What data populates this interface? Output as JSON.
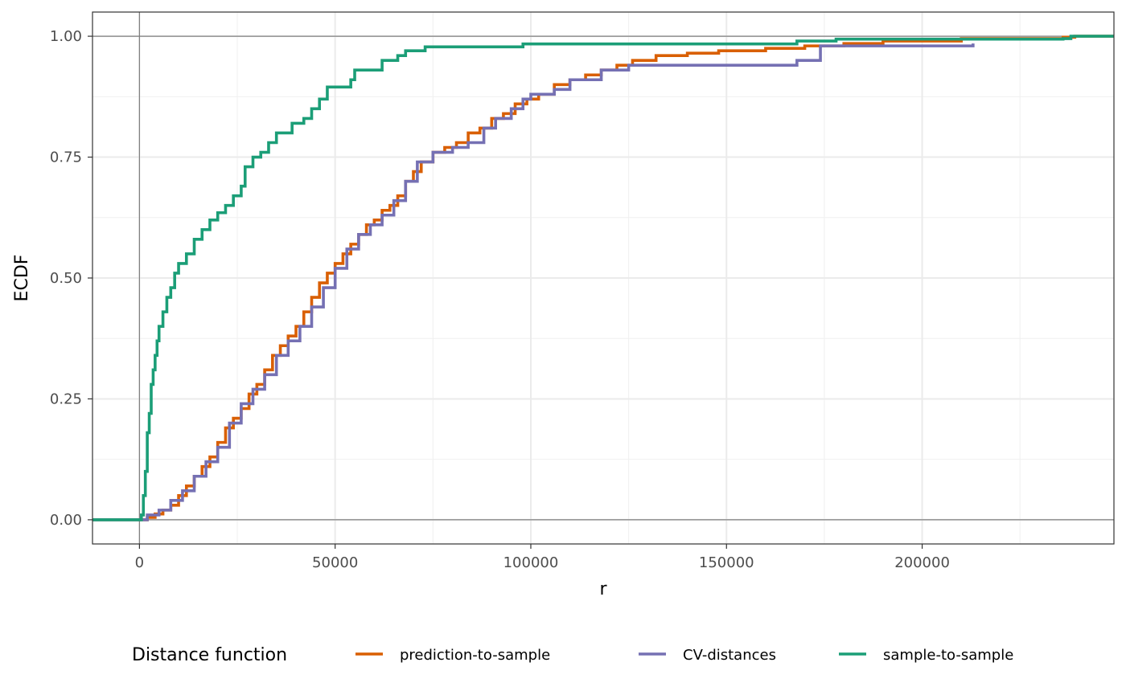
{
  "chart_data": {
    "type": "line",
    "step": true,
    "xlabel": "r",
    "ylabel": "ECDF",
    "xlim": [
      -12000,
      249000
    ],
    "ylim": [
      -0.05,
      1.05
    ],
    "x_ticks": [
      0,
      50000,
      100000,
      150000,
      200000
    ],
    "x_tick_labels": [
      "0",
      "50000",
      "100000",
      "150000",
      "200000"
    ],
    "y_ticks": [
      0,
      0.25,
      0.5,
      0.75,
      1
    ],
    "y_tick_labels": [
      "0.00",
      "0.25",
      "0.50",
      "0.75",
      "1.00"
    ],
    "grid": true,
    "reference_lines": {
      "x": [
        0
      ],
      "y": [
        0,
        1
      ]
    },
    "legend": {
      "title": "Distance function",
      "position": "bottom",
      "items": [
        {
          "label": "prediction-to-sample",
          "color": "#D95F02"
        },
        {
          "label": "CV-distances",
          "color": "#7570B3"
        },
        {
          "label": "sample-to-sample",
          "color": "#1B9E77"
        }
      ]
    },
    "series": [
      {
        "name": "prediction-to-sample",
        "color": "#D95F02",
        "points": [
          [
            -12000,
            0
          ],
          [
            0,
            0
          ],
          [
            2000,
            0.005
          ],
          [
            4000,
            0.012
          ],
          [
            6000,
            0.02
          ],
          [
            8000,
            0.03
          ],
          [
            10000,
            0.05
          ],
          [
            12000,
            0.07
          ],
          [
            14000,
            0.09
          ],
          [
            16000,
            0.11
          ],
          [
            18000,
            0.13
          ],
          [
            20000,
            0.16
          ],
          [
            22000,
            0.19
          ],
          [
            24000,
            0.21
          ],
          [
            26000,
            0.23
          ],
          [
            28000,
            0.26
          ],
          [
            30000,
            0.28
          ],
          [
            32000,
            0.31
          ],
          [
            34000,
            0.34
          ],
          [
            36000,
            0.36
          ],
          [
            38000,
            0.38
          ],
          [
            40000,
            0.4
          ],
          [
            42000,
            0.43
          ],
          [
            44000,
            0.46
          ],
          [
            46000,
            0.49
          ],
          [
            48000,
            0.51
          ],
          [
            50000,
            0.53
          ],
          [
            52000,
            0.55
          ],
          [
            54000,
            0.57
          ],
          [
            56000,
            0.59
          ],
          [
            58000,
            0.61
          ],
          [
            60000,
            0.62
          ],
          [
            62000,
            0.64
          ],
          [
            64000,
            0.65
          ],
          [
            66000,
            0.67
          ],
          [
            68000,
            0.7
          ],
          [
            70000,
            0.72
          ],
          [
            72000,
            0.74
          ],
          [
            75000,
            0.76
          ],
          [
            78000,
            0.77
          ],
          [
            81000,
            0.78
          ],
          [
            84000,
            0.8
          ],
          [
            87000,
            0.81
          ],
          [
            90000,
            0.83
          ],
          [
            93000,
            0.84
          ],
          [
            96000,
            0.86
          ],
          [
            99000,
            0.87
          ],
          [
            102000,
            0.88
          ],
          [
            106000,
            0.9
          ],
          [
            110000,
            0.91
          ],
          [
            114000,
            0.92
          ],
          [
            118000,
            0.93
          ],
          [
            122000,
            0.94
          ],
          [
            126000,
            0.95
          ],
          [
            132000,
            0.96
          ],
          [
            140000,
            0.965
          ],
          [
            148000,
            0.97
          ],
          [
            160000,
            0.975
          ],
          [
            170000,
            0.98
          ],
          [
            180000,
            0.985
          ],
          [
            190000,
            0.99
          ],
          [
            210000,
            0.995
          ],
          [
            236000,
            0.998
          ],
          [
            239000,
            1.0
          ],
          [
            249000,
            1.0
          ]
        ]
      },
      {
        "name": "CV-distances",
        "color": "#7570B3",
        "points": [
          [
            -12000,
            0
          ],
          [
            1000,
            0
          ],
          [
            2000,
            0.01
          ],
          [
            5000,
            0.02
          ],
          [
            8000,
            0.04
          ],
          [
            11000,
            0.06
          ],
          [
            14000,
            0.09
          ],
          [
            17000,
            0.12
          ],
          [
            20000,
            0.15
          ],
          [
            23000,
            0.2
          ],
          [
            26000,
            0.24
          ],
          [
            29000,
            0.27
          ],
          [
            32000,
            0.3
          ],
          [
            35000,
            0.34
          ],
          [
            38000,
            0.37
          ],
          [
            41000,
            0.4
          ],
          [
            44000,
            0.44
          ],
          [
            47000,
            0.48
          ],
          [
            50000,
            0.52
          ],
          [
            53000,
            0.56
          ],
          [
            56000,
            0.59
          ],
          [
            59000,
            0.61
          ],
          [
            62000,
            0.63
          ],
          [
            65000,
            0.66
          ],
          [
            68000,
            0.7
          ],
          [
            71000,
            0.74
          ],
          [
            75000,
            0.76
          ],
          [
            80000,
            0.77
          ],
          [
            84000,
            0.78
          ],
          [
            88000,
            0.81
          ],
          [
            91000,
            0.83
          ],
          [
            95000,
            0.85
          ],
          [
            98000,
            0.87
          ],
          [
            100000,
            0.88
          ],
          [
            106000,
            0.89
          ],
          [
            110000,
            0.91
          ],
          [
            118000,
            0.93
          ],
          [
            125000,
            0.94
          ],
          [
            168000,
            0.95
          ],
          [
            174000,
            0.98
          ],
          [
            213000,
            0.985
          ]
        ]
      },
      {
        "name": "sample-to-sample",
        "color": "#1B9E77",
        "points": [
          [
            -12000,
            0
          ],
          [
            0,
            0
          ],
          [
            500,
            0.01
          ],
          [
            1000,
            0.05
          ],
          [
            1500,
            0.1
          ],
          [
            2000,
            0.18
          ],
          [
            2500,
            0.22
          ],
          [
            3000,
            0.28
          ],
          [
            3500,
            0.31
          ],
          [
            4000,
            0.34
          ],
          [
            4500,
            0.37
          ],
          [
            5000,
            0.4
          ],
          [
            6000,
            0.43
          ],
          [
            7000,
            0.46
          ],
          [
            8000,
            0.48
          ],
          [
            9000,
            0.51
          ],
          [
            10000,
            0.53
          ],
          [
            12000,
            0.55
          ],
          [
            14000,
            0.58
          ],
          [
            16000,
            0.6
          ],
          [
            18000,
            0.62
          ],
          [
            20000,
            0.635
          ],
          [
            22000,
            0.65
          ],
          [
            24000,
            0.67
          ],
          [
            26000,
            0.69
          ],
          [
            27000,
            0.73
          ],
          [
            29000,
            0.75
          ],
          [
            31000,
            0.76
          ],
          [
            33000,
            0.78
          ],
          [
            35000,
            0.8
          ],
          [
            39000,
            0.82
          ],
          [
            42000,
            0.83
          ],
          [
            44000,
            0.85
          ],
          [
            46000,
            0.87
          ],
          [
            48000,
            0.895
          ],
          [
            54000,
            0.91
          ],
          [
            55000,
            0.93
          ],
          [
            62000,
            0.95
          ],
          [
            66000,
            0.96
          ],
          [
            68000,
            0.97
          ],
          [
            73000,
            0.978
          ],
          [
            98000,
            0.984
          ],
          [
            168000,
            0.99
          ],
          [
            178000,
            0.994
          ],
          [
            236000,
            0.995
          ],
          [
            238000,
            1.0
          ],
          [
            249000,
            1.0
          ]
        ]
      }
    ]
  }
}
